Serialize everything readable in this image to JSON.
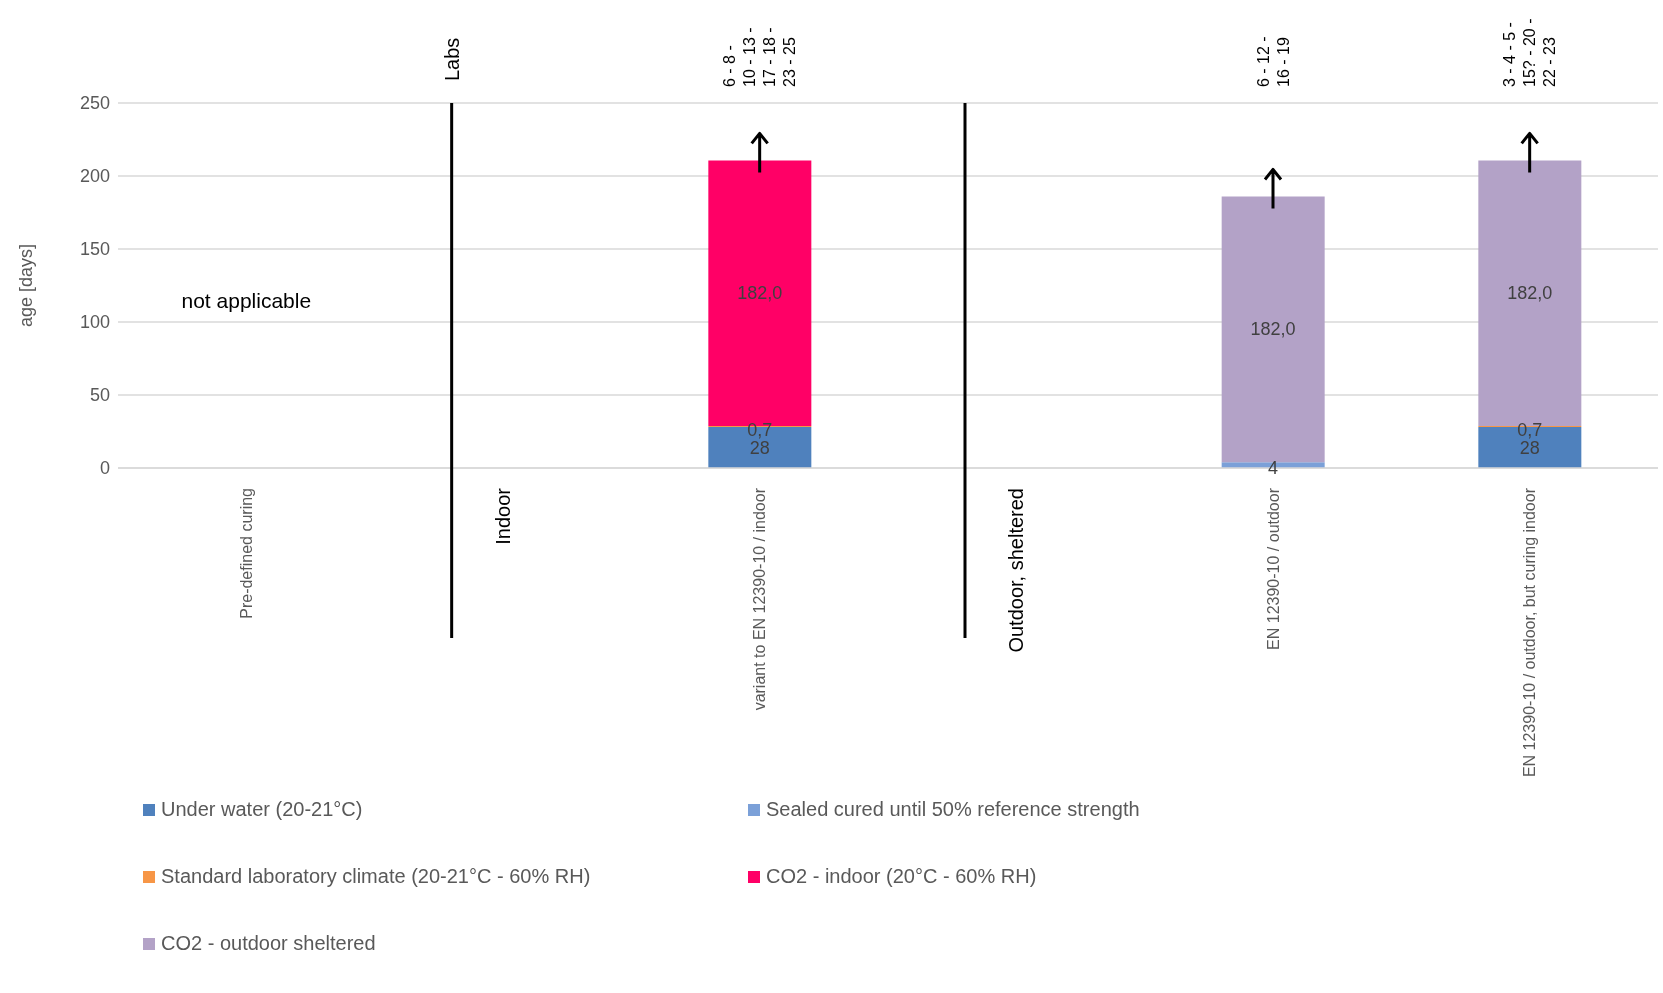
{
  "chart_data": {
    "type": "bar",
    "stacked": true,
    "ylabel": "age [days]",
    "categories": [
      "Pre-defined curing",
      "Indoor",
      "variant to EN 12390-10 / indoor",
      "Outdoor, sheltered",
      "EN 12390-10 / outdoor",
      "EN 12390-10 / outdoor, but curing indoor"
    ],
    "ref_lines": [
      {
        "axis": "x",
        "value": "Indoor",
        "color": "#000000"
      },
      {
        "axis": "x",
        "value": "Outdoor, sheltered",
        "color": "#000000"
      }
    ],
    "series": [
      {
        "name": "Under water (20-21°C)",
        "color": "#4f81bd",
        "values": [
          null,
          null,
          28,
          null,
          null,
          28
        ],
        "value_labels": [
          null,
          null,
          "28",
          null,
          null,
          "28"
        ]
      },
      {
        "name": "Sealed cured until 50% reference strength",
        "color": "#7ba0d8",
        "values": [
          null,
          null,
          null,
          null,
          4,
          null
        ],
        "value_labels": [
          null,
          null,
          null,
          null,
          "4",
          null
        ]
      },
      {
        "name": "Standard laboratory climate (20-21°C - 60% RH)",
        "color": "#f79646",
        "values": [
          null,
          null,
          0.7,
          null,
          null,
          0.7
        ],
        "value_labels": [
          null,
          null,
          "0,7",
          null,
          null,
          "0,7"
        ]
      },
      {
        "name": "CO2 - indoor (20°C - 60% RH)",
        "color": "#ff0066",
        "values": [
          null,
          null,
          182,
          null,
          null,
          null
        ],
        "value_labels": [
          null,
          null,
          "182,0",
          null,
          null,
          null
        ]
      },
      {
        "name": "CO2 - outdoor sheltered",
        "color": "#b3a2c7",
        "values": [
          null,
          null,
          null,
          null,
          182,
          182
        ],
        "value_labels": [
          null,
          null,
          null,
          null,
          "182,0",
          "182,0"
        ]
      }
    ],
    "ylim": [
      0,
      250
    ],
    "yticks": [
      0,
      50,
      100,
      150,
      200,
      250
    ],
    "grid": "y",
    "legend": "bottom",
    "annotations": [
      "Labs",
      "not applicable",
      "6 - 8 - 10 - 13 - 17 - 18 - 23 - 25",
      "6 - 12 - 16 - 19",
      "3 - 4 - 5 - 15? - 20 - 22 - 23"
    ]
  }
}
